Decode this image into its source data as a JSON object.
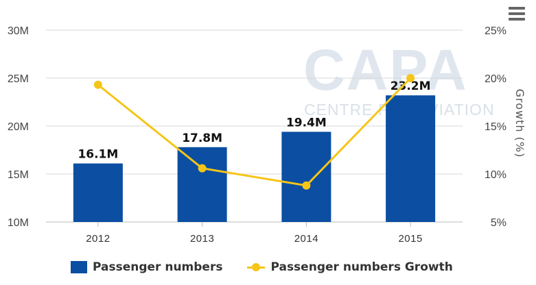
{
  "chart_data": {
    "type": "bar",
    "categories": [
      "2012",
      "2013",
      "2014",
      "2015"
    ],
    "series": [
      {
        "name": "Passenger numbers",
        "type": "bar",
        "axis": "left",
        "values": [
          16.1,
          17.8,
          19.4,
          23.2
        ],
        "labels": [
          "16.1M",
          "17.8M",
          "19.4M",
          "23.2M"
        ],
        "color": "#0b4ea2"
      },
      {
        "name": "Passenger numbers Growth",
        "type": "line",
        "axis": "right",
        "values": [
          19.3,
          10.6,
          8.8,
          20.0
        ],
        "color": "#f5c518"
      }
    ],
    "y_left": {
      "ylim": [
        10,
        30
      ],
      "ticks": [
        10,
        15,
        20,
        25,
        30
      ],
      "tick_labels": [
        "10M",
        "15M",
        "20M",
        "25M",
        "30M"
      ]
    },
    "y_right": {
      "label": "Growth (%)",
      "ylim": [
        5,
        25
      ],
      "ticks": [
        5,
        10,
        15,
        20,
        25
      ],
      "tick_labels": [
        "5%",
        "10%",
        "15%",
        "20%",
        "25%"
      ]
    },
    "grid": true,
    "legend": "bottom"
  },
  "watermark": {
    "big": "CAPA",
    "small": "CENTRE FOR AVIATION"
  },
  "icons": {
    "menu": "hamburger-menu-icon"
  }
}
